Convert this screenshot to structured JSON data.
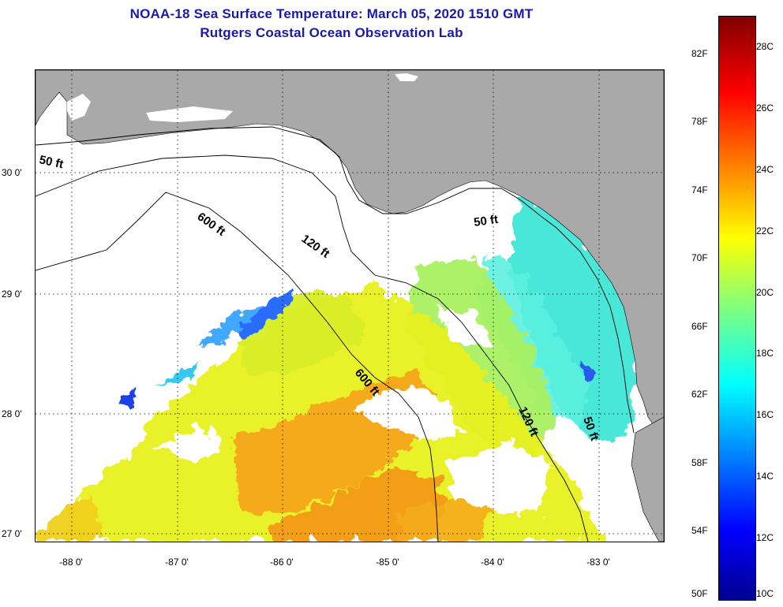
{
  "title_line1": "NOAA-18 Sea Surface Temperature:  March 05, 2020 1510 GMT",
  "title_line2": "Rutgers Coastal Ocean Observation Lab",
  "latitude_labels": [
    "30 0'",
    "29 0'",
    "28 0'",
    "27 0'"
  ],
  "longitude_labels": [
    "-88 0'",
    "-87 0'",
    "-86 0'",
    "-85 0'",
    "-84 0'",
    "-83 0'"
  ],
  "contour_labels": {
    "nw_50": "50 ft",
    "w_600": "600 ft",
    "w_120": "120 ft",
    "ne_50": "50 ft",
    "mid_600": "600 ft",
    "se_120": "120 ft",
    "se_50": "50 ft"
  },
  "colorbar": {
    "fahrenheit_labels": [
      "82F",
      "78F",
      "74F",
      "70F",
      "66F",
      "62F",
      "58F",
      "54F",
      "50F"
    ],
    "celsius_labels": [
      "28C",
      "26C",
      "24C",
      "22C",
      "20C",
      "18C",
      "16C",
      "14C",
      "12C",
      "10C"
    ],
    "min_c": 10,
    "max_c": 29,
    "colormap": "jet"
  },
  "colors": {
    "title": "#1a1aa6",
    "land": "#a9a9a9",
    "cloud": "#ffffff"
  }
}
